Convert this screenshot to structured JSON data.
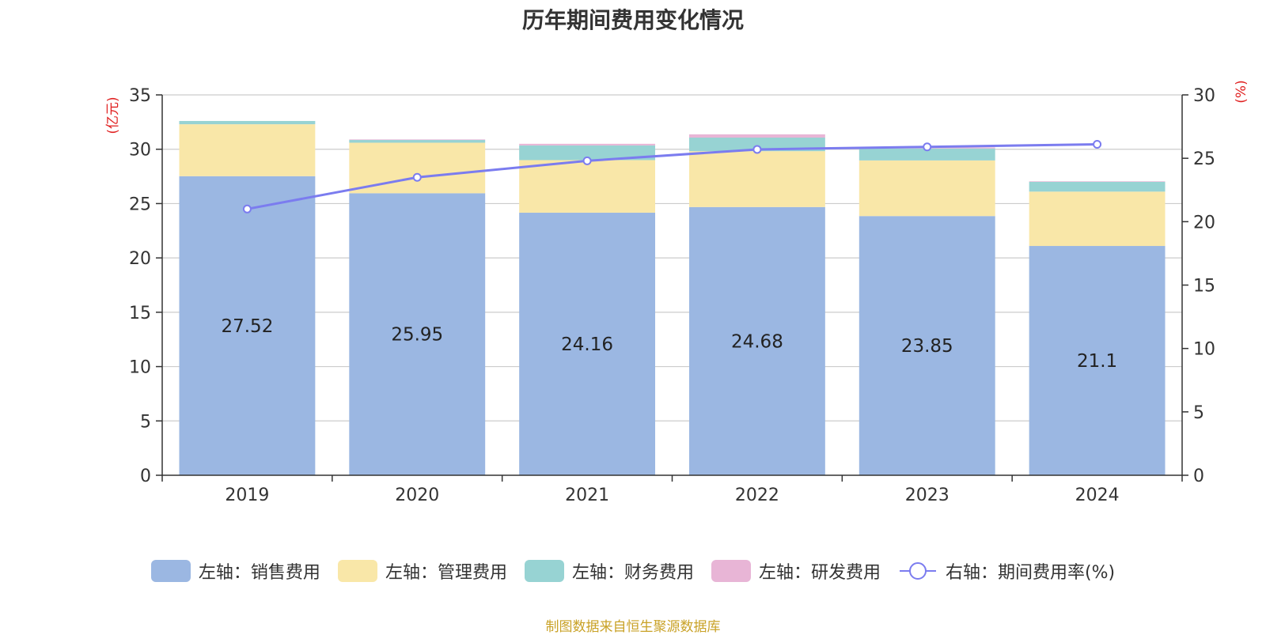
{
  "title": "历年期间费用变化情况",
  "source": "制图数据来自恒生聚源数据库",
  "chart_data": {
    "type": "bar",
    "stacked": true,
    "categories": [
      "2019",
      "2020",
      "2021",
      "2022",
      "2023",
      "2024"
    ],
    "left_axis": {
      "unit_label": "(亿元)",
      "ticks": [
        "0",
        "5",
        "10",
        "15",
        "20",
        "25",
        "30",
        "35"
      ],
      "ylim": [
        0,
        35
      ]
    },
    "right_axis": {
      "unit_label": "(%)",
      "ticks": [
        "0",
        "5",
        "10",
        "15",
        "20",
        "25",
        "30"
      ],
      "ylim": [
        0,
        30
      ]
    },
    "series": [
      {
        "name": "左轴：销售费用",
        "color": "#9bb7e2",
        "values": [
          27.52,
          25.95,
          24.16,
          24.68,
          23.85,
          21.1
        ],
        "labels": [
          "27.52",
          "25.95",
          "24.16",
          "24.68",
          "23.85",
          "21.1"
        ]
      },
      {
        "name": "左轴：管理费用",
        "color": "#f9e7a8",
        "values": [
          4.78,
          4.65,
          4.84,
          5.14,
          5.12,
          5.0
        ]
      },
      {
        "name": "左轴：财务费用",
        "color": "#97d3d3",
        "values": [
          0.3,
          0.25,
          1.35,
          1.25,
          1.1,
          0.9
        ]
      },
      {
        "name": "左轴：研发费用",
        "color": "#e8b5d6",
        "values": [
          0.0,
          0.05,
          0.15,
          0.3,
          0.1,
          0.05
        ]
      }
    ],
    "line_series": {
      "name": "右轴：期间费用率(%)",
      "color": "#7b7cef",
      "axis": "right",
      "values": [
        21.0,
        23.5,
        24.8,
        25.7,
        25.9,
        26.1
      ]
    },
    "grid": true,
    "legend_position": "bottom"
  }
}
